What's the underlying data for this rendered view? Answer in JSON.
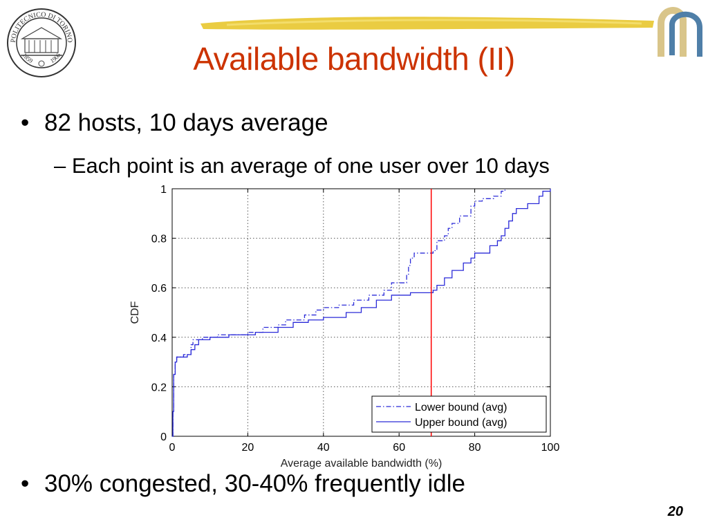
{
  "slide": {
    "title": "Available bandwidth (II)",
    "bullets": [
      {
        "text": "82 hosts, 10 days average"
      },
      {
        "text": "30% congested, 30-40% frequently idle"
      }
    ],
    "sub_bullet": "– Each point is an average of one user over 10 days",
    "bullet_glyph": "•",
    "page_number": "20",
    "seal_text": "POLITECNICO DI TORINO",
    "seal_years": [
      "1859",
      "1906"
    ],
    "colors": {
      "title": "#cc3300",
      "stroke": "#e8c832",
      "logo_blue": "#4f7fa8",
      "logo_tan": "#d9c58a"
    }
  },
  "chart_data": {
    "type": "line",
    "title": "",
    "xlabel": "Average available bandwidth (%)",
    "ylabel": "CDF",
    "xlim": [
      0,
      100
    ],
    "ylim": [
      0,
      1
    ],
    "xticks": [
      "0",
      "20",
      "40",
      "60",
      "80",
      "100"
    ],
    "yticks": [
      "0",
      "0.2",
      "0.4",
      "0.6",
      "0.8",
      "1"
    ],
    "grid": true,
    "legend_position": "bottom-right",
    "vertical_marker": {
      "x": 68.5,
      "color": "#ff0000"
    },
    "series": [
      {
        "name": "Lower bound (avg)",
        "style": "dash-dot",
        "color": "#2a2ad8",
        "points": [
          [
            0,
            0
          ],
          [
            0.2,
            0.1
          ],
          [
            0.4,
            0.25
          ],
          [
            0.8,
            0.3
          ],
          [
            1.2,
            0.32
          ],
          [
            3,
            0.33
          ],
          [
            5,
            0.37
          ],
          [
            5.5,
            0.39
          ],
          [
            8,
            0.4
          ],
          [
            12,
            0.41
          ],
          [
            20,
            0.42
          ],
          [
            24,
            0.44
          ],
          [
            28,
            0.45
          ],
          [
            30,
            0.47
          ],
          [
            35,
            0.49
          ],
          [
            38,
            0.51
          ],
          [
            40,
            0.52
          ],
          [
            44,
            0.53
          ],
          [
            48,
            0.55
          ],
          [
            52,
            0.57
          ],
          [
            56,
            0.59
          ],
          [
            58,
            0.62
          ],
          [
            62,
            0.65
          ],
          [
            62.5,
            0.69
          ],
          [
            63,
            0.72
          ],
          [
            64,
            0.74
          ],
          [
            69,
            0.75
          ],
          [
            70,
            0.79
          ],
          [
            72,
            0.81
          ],
          [
            73,
            0.84
          ],
          [
            74,
            0.86
          ],
          [
            76,
            0.89
          ],
          [
            79,
            0.93
          ],
          [
            80,
            0.95
          ],
          [
            82,
            0.96
          ],
          [
            85,
            0.97
          ],
          [
            87,
            0.99
          ],
          [
            88,
            1.0
          ]
        ]
      },
      {
        "name": "Upper bound (avg)",
        "style": "solid",
        "color": "#2a2ad8",
        "points": [
          [
            0,
            0
          ],
          [
            0.2,
            0.1
          ],
          [
            0.4,
            0.25
          ],
          [
            0.8,
            0.3
          ],
          [
            1.2,
            0.32
          ],
          [
            4,
            0.33
          ],
          [
            5,
            0.35
          ],
          [
            6,
            0.37
          ],
          [
            7,
            0.39
          ],
          [
            10,
            0.4
          ],
          [
            15,
            0.41
          ],
          [
            22,
            0.42
          ],
          [
            28,
            0.44
          ],
          [
            32,
            0.46
          ],
          [
            36,
            0.47
          ],
          [
            40,
            0.48
          ],
          [
            46,
            0.5
          ],
          [
            50,
            0.52
          ],
          [
            54,
            0.55
          ],
          [
            58,
            0.57
          ],
          [
            63,
            0.58
          ],
          [
            69,
            0.59
          ],
          [
            70,
            0.61
          ],
          [
            72,
            0.64
          ],
          [
            74,
            0.67
          ],
          [
            77,
            0.7
          ],
          [
            79,
            0.72
          ],
          [
            80,
            0.74
          ],
          [
            83,
            0.74
          ],
          [
            84,
            0.77
          ],
          [
            86,
            0.79
          ],
          [
            87,
            0.81
          ],
          [
            88,
            0.84
          ],
          [
            89,
            0.87
          ],
          [
            90,
            0.9
          ],
          [
            91,
            0.92
          ],
          [
            94,
            0.94
          ],
          [
            97,
            0.97
          ],
          [
            98,
            0.99
          ],
          [
            100,
            1.0
          ]
        ]
      }
    ]
  }
}
